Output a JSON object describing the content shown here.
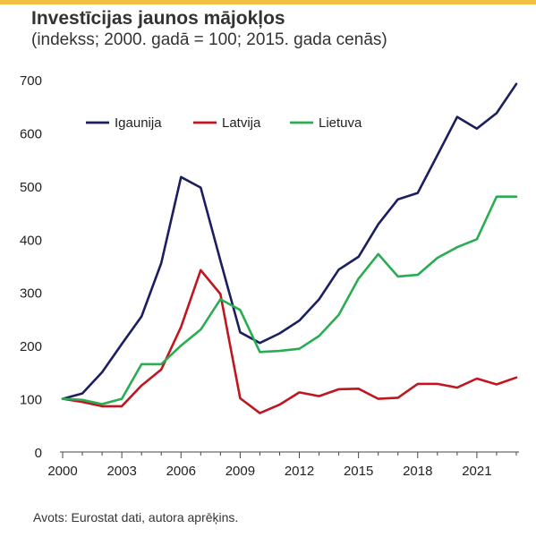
{
  "header": {
    "title": "Investīcijas jaunos mājokļos",
    "subtitle": "(indekss; 2000. gadā = 100; 2015. gada cenās)"
  },
  "footer": {
    "source": "Avots: Eurostat dati, autora aprēķins."
  },
  "colors": {
    "accent_bar": "#f2c043",
    "Igaunija": "#1b1f5e",
    "Latvija": "#c0161f",
    "Lietuva": "#2aad52"
  },
  "chart_data": {
    "type": "line",
    "title": "Investīcijas jaunos mājokļos",
    "subtitle": "(indekss; 2000. gadā = 100; 2015. gada cenās)",
    "x": [
      2000,
      2001,
      2002,
      2003,
      2004,
      2005,
      2006,
      2007,
      2008,
      2009,
      2010,
      2011,
      2012,
      2013,
      2014,
      2015,
      2016,
      2017,
      2018,
      2019,
      2020,
      2021,
      2022,
      2023
    ],
    "xticks": [
      "2000",
      "2003",
      "2006",
      "2009",
      "2012",
      "2015",
      "2018",
      "2021"
    ],
    "yticks": [
      "0",
      "100",
      "200",
      "300",
      "400",
      "500",
      "600",
      "700"
    ],
    "ylim": [
      0,
      700
    ],
    "xlim": [
      2000,
      2023
    ],
    "legend": "top-left inside",
    "grid": false,
    "series": [
      {
        "name": "Igaunija",
        "color": "#1b1f5e",
        "values": [
          100,
          110,
          150,
          203,
          255,
          355,
          517,
          497,
          360,
          225,
          205,
          223,
          247,
          287,
          343,
          367,
          428,
          475,
          487,
          558,
          630,
          608,
          637,
          692
        ]
      },
      {
        "name": "Latvija",
        "color": "#c0161f",
        "values": [
          100,
          94,
          86,
          86,
          125,
          155,
          235,
          342,
          297,
          101,
          73,
          89,
          112,
          105,
          118,
          119,
          100,
          102,
          128,
          128,
          121,
          138,
          127,
          140
        ]
      },
      {
        "name": "Lietuva",
        "color": "#2aad52",
        "values": [
          100,
          98,
          90,
          100,
          165,
          165,
          200,
          230,
          287,
          267,
          188,
          190,
          194,
          218,
          258,
          326,
          372,
          330,
          333,
          365,
          385,
          400,
          480,
          480
        ]
      }
    ]
  }
}
